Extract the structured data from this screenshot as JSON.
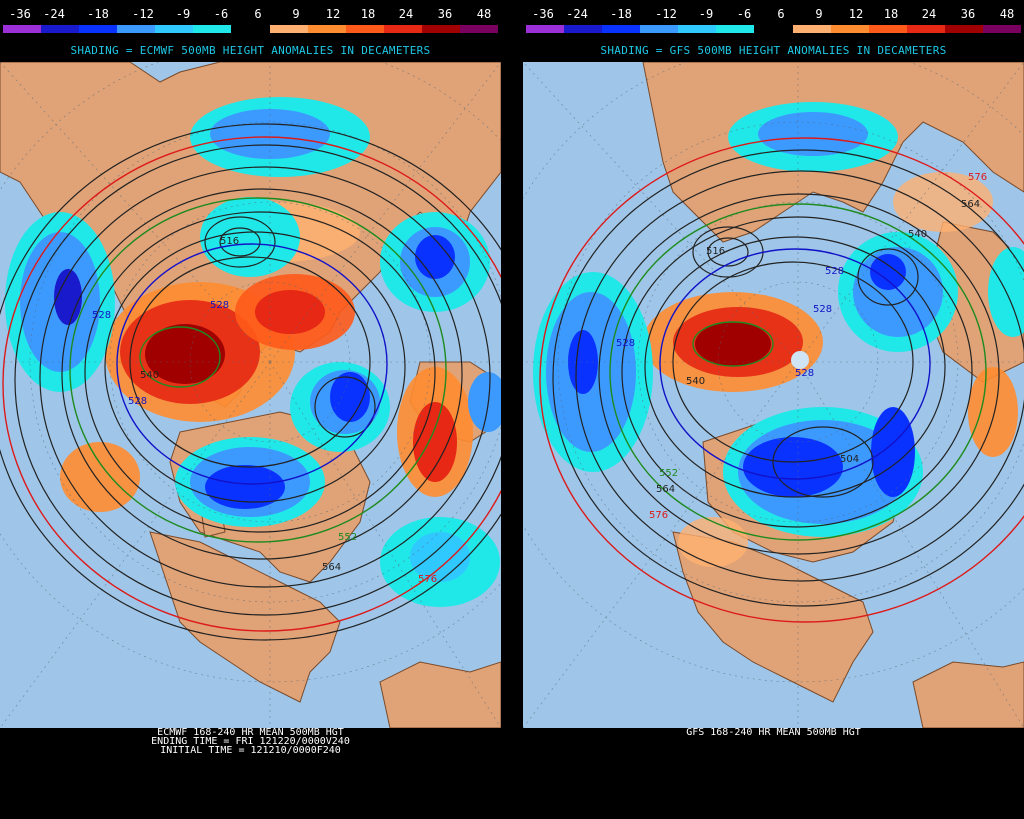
{
  "legend": {
    "labels": [
      "-36",
      "-24",
      "-18",
      "-12",
      "-9",
      "-6",
      "6",
      "9",
      "12",
      "18",
      "24",
      "36",
      "48"
    ],
    "colors": [
      "#9b30d8",
      "#1a1acd",
      "#0a32ff",
      "#3c9aff",
      "#2fc8ff",
      "#20e8e8",
      "#000000",
      "#ffb070",
      "#ff8c30",
      "#ff5a1a",
      "#e62814",
      "#a00000",
      "#7a0060"
    ]
  },
  "left": {
    "shading_title": "SHADING = ECMWF 500MB HEIGHT ANOMALIES IN DECAMETERS",
    "footer_lines": [
      "ECMWF 168-240 HR MEAN 500MB HGT",
      "ENDING TIME = FRI 121220/0000V240",
      "INITIAL TIME = 121210/0000F240"
    ],
    "contour_labels": [
      "516",
      "528",
      "528",
      "528",
      "540",
      "552",
      "564",
      "576"
    ]
  },
  "right": {
    "shading_title": "SHADING = GFS 500MB HEIGHT ANOMALIES IN DECAMETERS",
    "footer_lines": [
      "GFS 168-240 HR MEAN 500MB HGT"
    ],
    "contour_labels": [
      "576",
      "564",
      "540",
      "516",
      "528",
      "528",
      "528",
      "528",
      "540",
      "552",
      "564",
      "576",
      "504"
    ]
  },
  "colors": {
    "ocean": "#9fc6e8",
    "land": "#e0a377",
    "contour": "#222222",
    "contour_576": "#dd1a1a",
    "contour_552": "#1f8a1f",
    "contour_528": "#1212c8",
    "title_cyan": "#1ec8e6"
  }
}
